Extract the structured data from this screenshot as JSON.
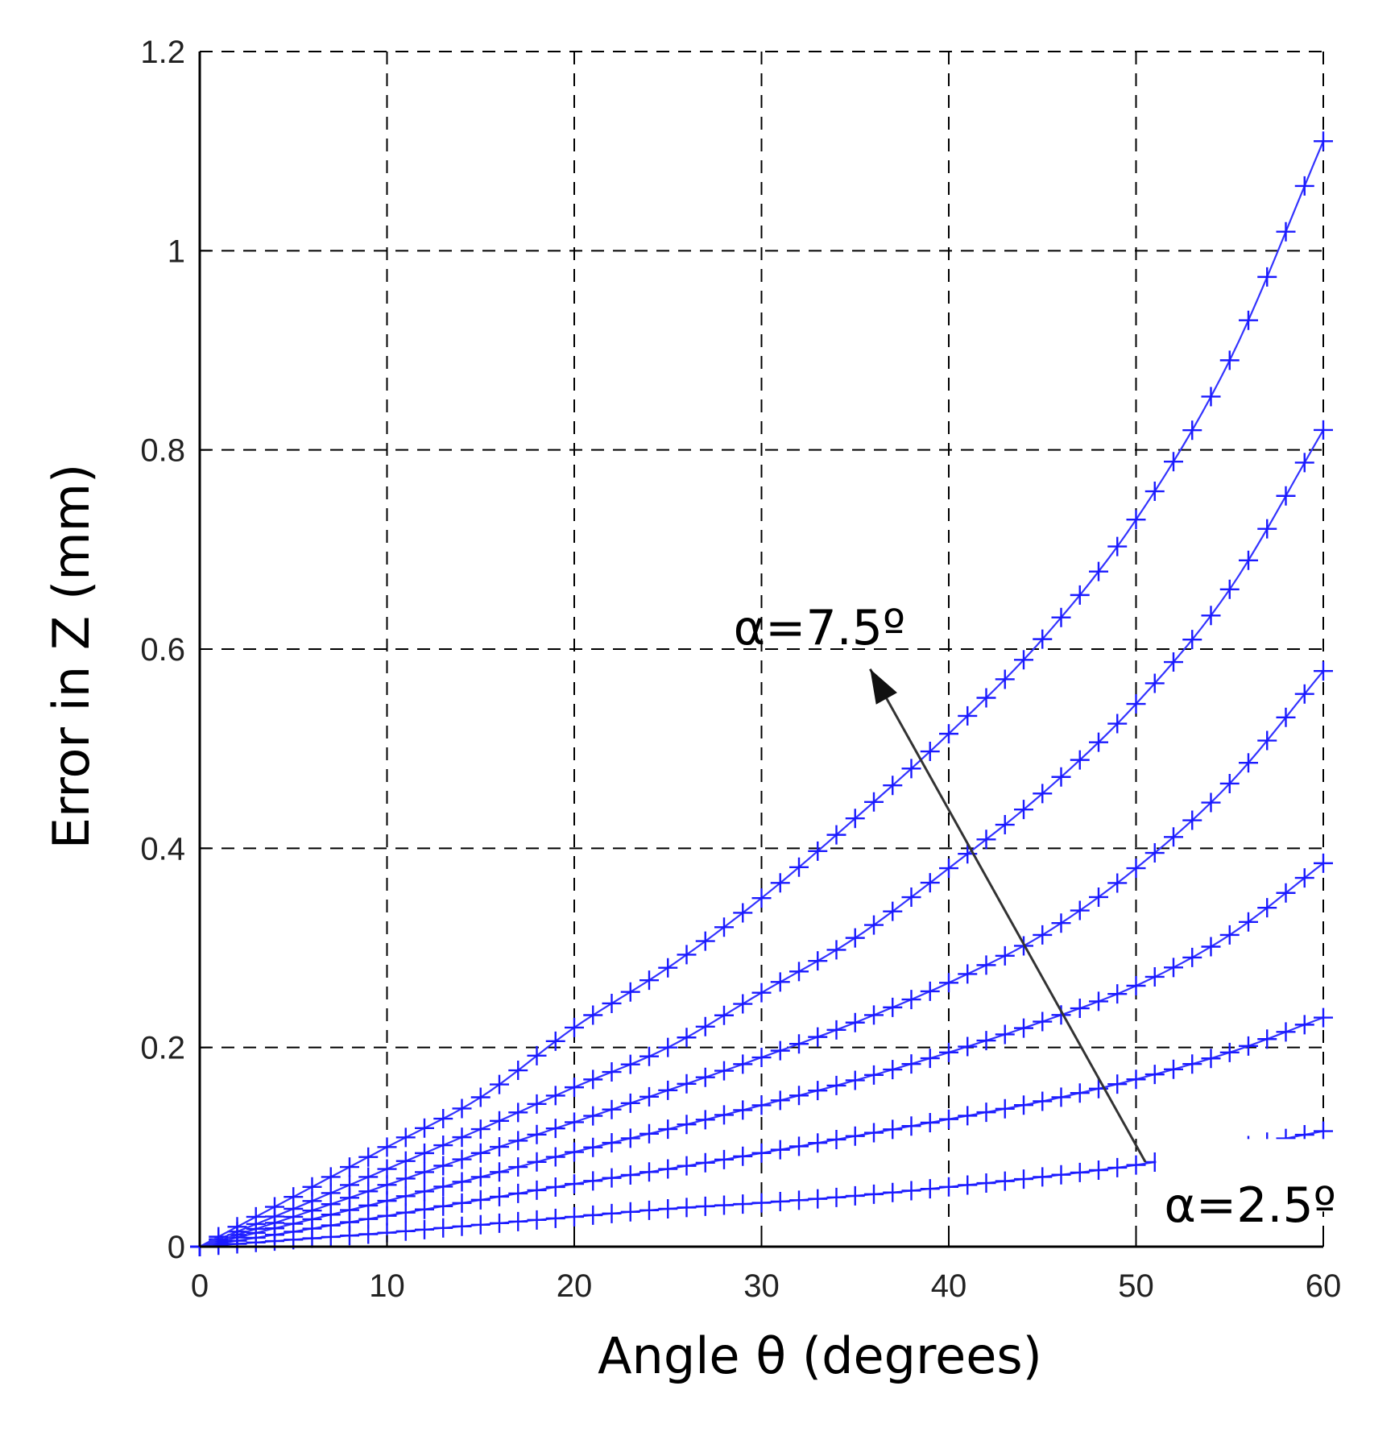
{
  "chart_data": {
    "type": "line",
    "xlabel": "Angle θ (degrees)",
    "ylabel": "Error in Z (mm)",
    "xlim": [
      0,
      60
    ],
    "ylim": [
      0,
      1.2
    ],
    "xticks": [
      0,
      10,
      20,
      30,
      40,
      50,
      60
    ],
    "yticks": [
      0,
      0.2,
      0.4,
      0.6,
      0.8,
      1,
      1.2
    ],
    "xtick_labels": [
      "0",
      "10",
      "20",
      "30",
      "40",
      "50",
      "60"
    ],
    "ytick_labels": [
      "0",
      "0.2",
      "0.4",
      "0.6",
      "0.8",
      "1",
      "1.2"
    ],
    "grid": true,
    "grid_style": "dashed",
    "marker": "+",
    "line_color": "#3333ff",
    "marker_color": "#1a1aff",
    "series": [
      {
        "x": [
          0,
          5,
          10,
          15,
          20,
          25,
          30,
          35,
          40,
          45,
          50,
          55,
          60
        ],
        "values": [
          0,
          0.007,
          0.014,
          0.022,
          0.03,
          0.038,
          0.044,
          0.051,
          0.06,
          0.07,
          0.082,
          0.098,
          0.116
        ]
      },
      {
        "x": [
          0,
          5,
          10,
          15,
          20,
          25,
          30,
          35,
          40,
          45,
          50,
          55,
          60
        ],
        "values": [
          0,
          0.015,
          0.031,
          0.047,
          0.063,
          0.078,
          0.094,
          0.111,
          0.128,
          0.146,
          0.168,
          0.195,
          0.23
        ]
      },
      {
        "x": [
          0,
          5,
          10,
          15,
          20,
          25,
          30,
          35,
          40,
          45,
          50,
          55,
          60
        ],
        "values": [
          0,
          0.023,
          0.046,
          0.07,
          0.095,
          0.118,
          0.142,
          0.167,
          0.195,
          0.226,
          0.262,
          0.313,
          0.385
        ]
      },
      {
        "x": [
          0,
          5,
          10,
          15,
          20,
          25,
          30,
          35,
          40,
          45,
          50,
          55,
          60
        ],
        "values": [
          0,
          0.03,
          0.062,
          0.094,
          0.125,
          0.157,
          0.19,
          0.225,
          0.265,
          0.313,
          0.38,
          0.465,
          0.578
        ]
      },
      {
        "x": [
          0,
          5,
          10,
          15,
          20,
          25,
          30,
          35,
          40,
          45,
          50,
          55,
          60
        ],
        "values": [
          0,
          0.038,
          0.078,
          0.118,
          0.16,
          0.2,
          0.255,
          0.31,
          0.38,
          0.455,
          0.545,
          0.66,
          0.82
        ]
      },
      {
        "x": [
          0,
          5,
          10,
          15,
          20,
          25,
          30,
          35,
          40,
          45,
          50,
          55,
          60
        ],
        "values": [
          0,
          0.05,
          0.1,
          0.15,
          0.22,
          0.28,
          0.35,
          0.43,
          0.515,
          0.61,
          0.73,
          0.89,
          1.11
        ]
      }
    ],
    "annotations": [
      {
        "text": "α=7.5º",
        "x": 28.5,
        "y": 0.605,
        "arrow_to": [
          35.8,
          0.58
        ],
        "arrow_from": [
          50.5,
          0.085
        ]
      },
      {
        "text": "α=2.5º",
        "x": 51.5,
        "y": 0.025
      }
    ]
  }
}
